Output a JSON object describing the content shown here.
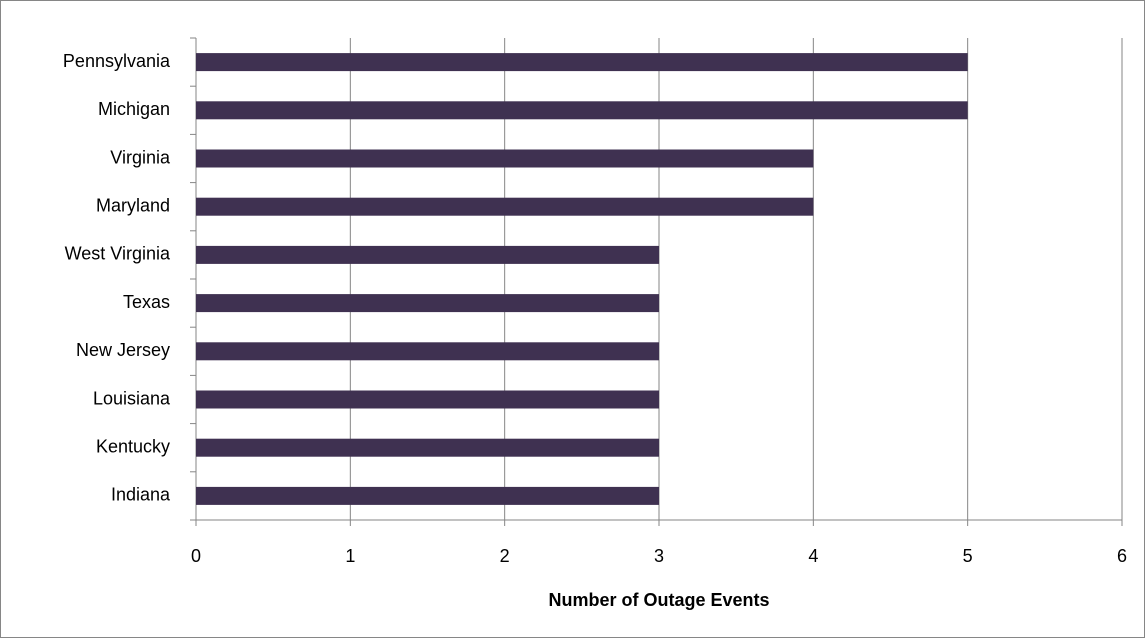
{
  "chart_data": {
    "type": "bar",
    "orientation": "horizontal",
    "x_label": "Number of Outage Events",
    "categories": [
      "Pennsylvania",
      "Michigan",
      "Virginia",
      "Maryland",
      "West Virginia",
      "Texas",
      "New Jersey",
      "Louisiana",
      "Kentucky",
      "Indiana"
    ],
    "values": [
      5,
      5,
      4,
      4,
      3,
      3,
      3,
      3,
      3,
      3
    ],
    "color": "#3f3151",
    "xlim": [
      0,
      6
    ],
    "xticks": [
      0,
      1,
      2,
      3,
      4,
      5,
      6
    ],
    "grid": true
  }
}
